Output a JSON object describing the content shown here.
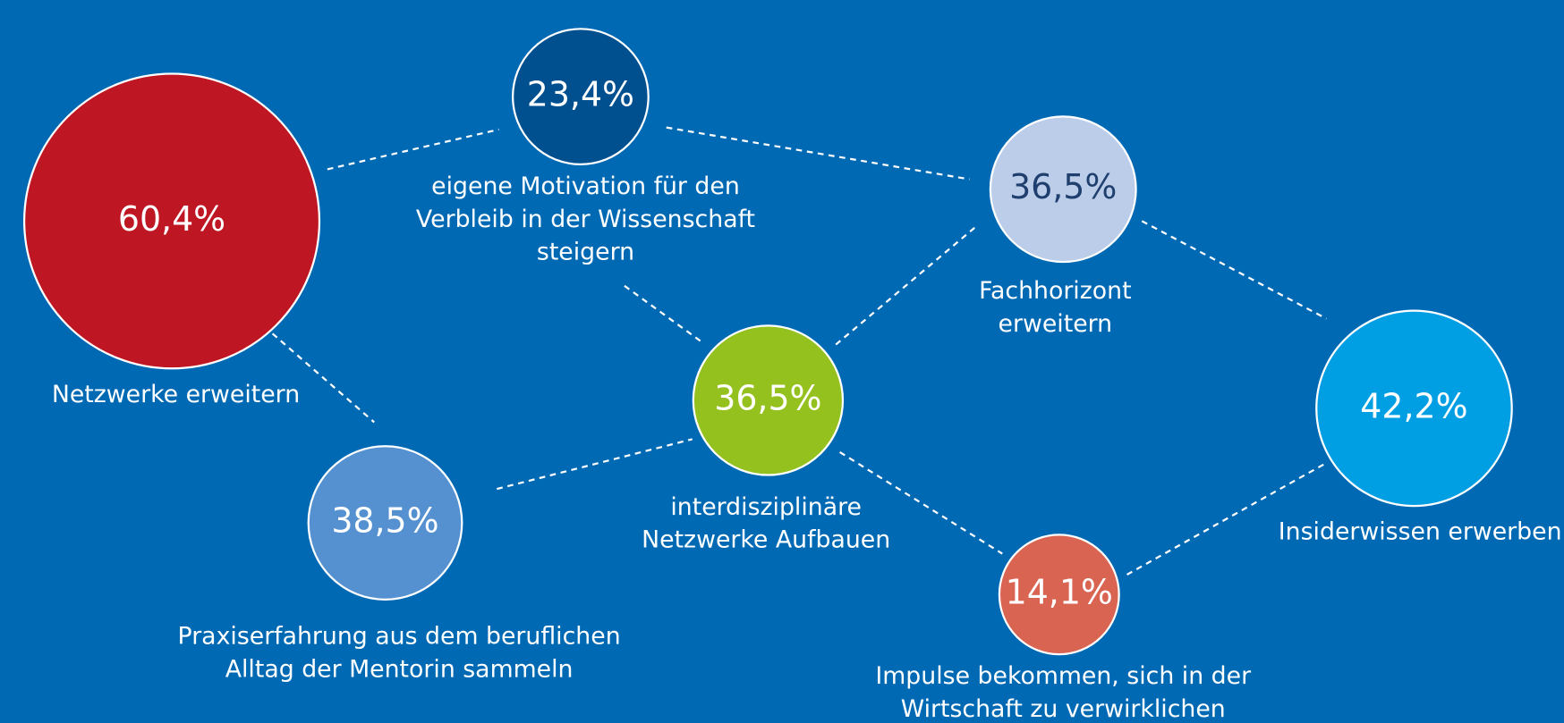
{
  "nodes": [
    {
      "value": "60,4%",
      "label": [
        "Netzwerke erweitern"
      ]
    },
    {
      "value": "23,4%",
      "label": [
        "eigene Motivation für den",
        "Verbleib in der Wissenschaft",
        "steigern"
      ]
    },
    {
      "value": "36,5%",
      "label": [
        "Fachhorizont",
        "erweitern"
      ]
    },
    {
      "value": "36,5%",
      "label": [
        "interdisziplinäre",
        "Netzwerke Aufbauen"
      ]
    },
    {
      "value": "38,5%",
      "label": [
        "Praxiserfahrung aus dem beruflichen",
        "Alltag der Mentorin sammeln"
      ]
    },
    {
      "value": "42,2%",
      "label": [
        "Insiderwissen erwerben"
      ]
    },
    {
      "value": "14,1%",
      "label": [
        "Impulse bekommen, sich in der",
        "Wirtschaft zu verwirklichen"
      ]
    }
  ]
}
